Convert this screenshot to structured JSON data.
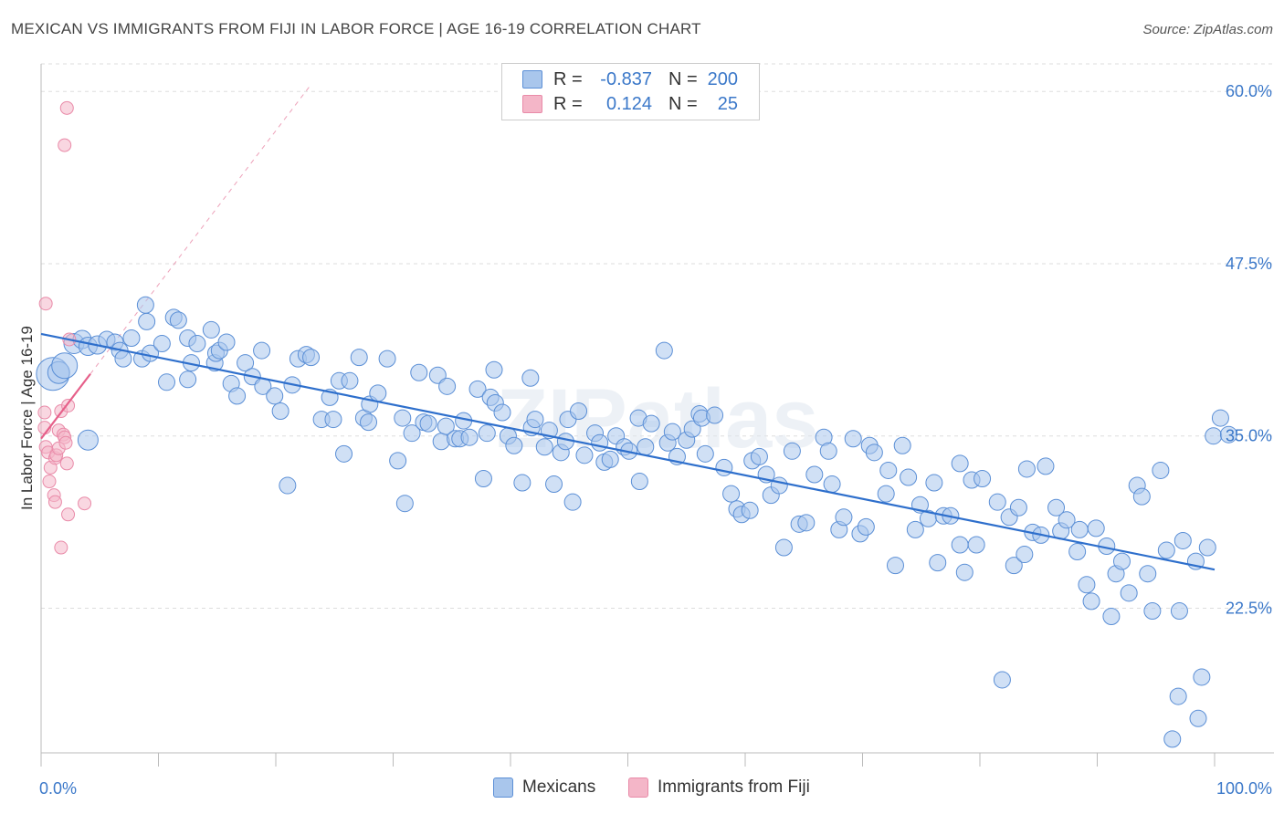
{
  "header": {
    "title": "MEXICAN VS IMMIGRANTS FROM FIJI IN LABOR FORCE | AGE 16-19 CORRELATION CHART",
    "source": "Source: ZipAtlas.com"
  },
  "watermark": "ZIPatlas",
  "legend": {
    "rows": [
      {
        "r_label": "R =",
        "r_value": "-0.837",
        "n_label": "N =",
        "n_value": "200",
        "color": "#a9c6ec"
      },
      {
        "r_label": "R =",
        "r_value": "0.124",
        "n_label": "N =",
        "n_value": "25",
        "color": "#f4b6c8"
      }
    ]
  },
  "bottom_legend": [
    {
      "label": "Mexicans",
      "color": "#a9c6ec"
    },
    {
      "label": "Immigrants from Fiji",
      "color": "#f4b6c8"
    }
  ],
  "colors": {
    "blue_fill": "#a9c6ec",
    "blue_stroke": "#5b8fd6",
    "blue_line": "#2e6fcc",
    "pink_fill": "#f4b6c8",
    "pink_stroke": "#e98aa8",
    "pink_line": "#e6608a",
    "axis_text": "#3b78c9",
    "grid": "#dddddd"
  },
  "chart_data": {
    "type": "scatter",
    "ylabel": "In Labor Force | Age 16-19",
    "xlim": [
      0,
      100
    ],
    "ylim": [
      12,
      62
    ],
    "x_tick_labels": [
      {
        "value": 0,
        "label": "0.0%"
      },
      {
        "value": 100,
        "label": "100.0%"
      }
    ],
    "y_tick_labels": [
      {
        "value": 22.5,
        "label": "22.5%"
      },
      {
        "value": 35.0,
        "label": "35.0%"
      },
      {
        "value": 47.5,
        "label": "47.5%"
      },
      {
        "value": 60.0,
        "label": "60.0%"
      }
    ],
    "grid": true,
    "series": [
      {
        "name": "Mexicans",
        "trend": {
          "x0": 0,
          "y0": 42.4,
          "x1": 100,
          "y1": 25.3
        },
        "points": [
          [
            1.0,
            39.5,
            18
          ],
          [
            1.5,
            39.6,
            12
          ],
          [
            2.0,
            40.1,
            14
          ],
          [
            2.8,
            41.7,
            11
          ],
          [
            3.5,
            42.0,
            10
          ],
          [
            4.0,
            41.5,
            10
          ],
          [
            4.0,
            34.7,
            11
          ],
          [
            4.8,
            41.6,
            10
          ],
          [
            5.6,
            42.0,
            9
          ],
          [
            6.3,
            41.8,
            9
          ],
          [
            6.7,
            41.2,
            9
          ],
          [
            7.0,
            40.6,
            9
          ],
          [
            7.7,
            42.1,
            9
          ],
          [
            8.6,
            40.6,
            9
          ],
          [
            8.9,
            44.5,
            9
          ],
          [
            9.0,
            43.3,
            9
          ],
          [
            9.3,
            41.0,
            9
          ],
          [
            10.3,
            41.7,
            9
          ],
          [
            10.7,
            38.9,
            9
          ],
          [
            11.3,
            43.6,
            9
          ],
          [
            11.7,
            43.4,
            9
          ],
          [
            12.5,
            42.1,
            9
          ],
          [
            12.5,
            39.1,
            9
          ],
          [
            12.8,
            40.3,
            9
          ],
          [
            13.3,
            41.7,
            9
          ],
          [
            14.5,
            42.7,
            9
          ],
          [
            14.8,
            40.3,
            9
          ],
          [
            14.9,
            41.0,
            9
          ],
          [
            15.2,
            41.2,
            9
          ],
          [
            15.8,
            41.8,
            9
          ],
          [
            16.2,
            38.8,
            9
          ],
          [
            16.7,
            37.9,
            9
          ],
          [
            17.4,
            40.3,
            9
          ],
          [
            18.0,
            39.3,
            9
          ],
          [
            18.8,
            41.2,
            9
          ],
          [
            18.9,
            38.6,
            9
          ],
          [
            19.9,
            37.9,
            9
          ],
          [
            20.4,
            36.8,
            9
          ],
          [
            21.0,
            31.4,
            9
          ],
          [
            21.4,
            38.7,
            9
          ],
          [
            21.9,
            40.6,
            9
          ],
          [
            22.6,
            40.9,
            9
          ],
          [
            23.0,
            40.7,
            9
          ],
          [
            23.9,
            36.2,
            9
          ],
          [
            24.6,
            37.8,
            9
          ],
          [
            24.9,
            36.2,
            9
          ],
          [
            25.4,
            39.0,
            9
          ],
          [
            25.8,
            33.7,
            9
          ],
          [
            26.3,
            39.0,
            9
          ],
          [
            27.1,
            40.7,
            9
          ],
          [
            27.5,
            36.3,
            9
          ],
          [
            27.9,
            36.0,
            9
          ],
          [
            28.0,
            37.3,
            9
          ],
          [
            28.7,
            38.1,
            9
          ],
          [
            29.5,
            40.6,
            9
          ],
          [
            30.4,
            33.2,
            9
          ],
          [
            30.8,
            36.3,
            9
          ],
          [
            31.0,
            30.1,
            9
          ],
          [
            31.6,
            35.2,
            9
          ],
          [
            32.2,
            39.6,
            9
          ],
          [
            32.6,
            36.0,
            9
          ],
          [
            33.0,
            35.9,
            9
          ],
          [
            33.8,
            39.4,
            9
          ],
          [
            34.1,
            34.6,
            9
          ],
          [
            34.5,
            35.7,
            9
          ],
          [
            34.6,
            38.6,
            9
          ],
          [
            35.3,
            34.8,
            9
          ],
          [
            35.7,
            34.8,
            9
          ],
          [
            36.0,
            36.1,
            9
          ],
          [
            36.5,
            34.9,
            9
          ],
          [
            37.2,
            38.4,
            9
          ],
          [
            37.7,
            31.9,
            9
          ],
          [
            38.0,
            35.2,
            9
          ],
          [
            38.3,
            37.8,
            9
          ],
          [
            38.6,
            39.8,
            9
          ],
          [
            38.7,
            37.4,
            9
          ],
          [
            39.3,
            36.7,
            9
          ],
          [
            39.8,
            35.0,
            9
          ],
          [
            40.3,
            34.3,
            9
          ],
          [
            41.0,
            31.6,
            9
          ],
          [
            41.7,
            39.2,
            9
          ],
          [
            41.8,
            35.6,
            9
          ],
          [
            42.1,
            36.2,
            9
          ],
          [
            42.9,
            34.2,
            9
          ],
          [
            43.3,
            35.4,
            9
          ],
          [
            43.7,
            31.5,
            9
          ],
          [
            44.3,
            33.8,
            9
          ],
          [
            44.7,
            34.6,
            9
          ],
          [
            44.9,
            36.2,
            9
          ],
          [
            45.3,
            30.2,
            9
          ],
          [
            45.8,
            36.8,
            9
          ],
          [
            46.3,
            33.6,
            9
          ],
          [
            47.2,
            35.2,
            9
          ],
          [
            47.6,
            34.5,
            9
          ],
          [
            48.0,
            33.1,
            9
          ],
          [
            48.5,
            33.3,
            9
          ],
          [
            49.0,
            35.0,
            9
          ],
          [
            49.7,
            34.2,
            9
          ],
          [
            50.1,
            33.9,
            9
          ],
          [
            50.9,
            36.3,
            9
          ],
          [
            51.0,
            31.7,
            9
          ],
          [
            51.5,
            34.2,
            9
          ],
          [
            52.0,
            35.9,
            9
          ],
          [
            53.1,
            41.2,
            9
          ],
          [
            53.4,
            34.5,
            9
          ],
          [
            53.8,
            35.3,
            9
          ],
          [
            54.2,
            33.5,
            9
          ],
          [
            55.0,
            34.7,
            9
          ],
          [
            55.5,
            35.5,
            9
          ],
          [
            56.1,
            36.6,
            9
          ],
          [
            56.3,
            36.3,
            9
          ],
          [
            56.6,
            33.7,
            9
          ],
          [
            57.4,
            36.5,
            9
          ],
          [
            58.2,
            32.7,
            9
          ],
          [
            58.8,
            30.8,
            9
          ],
          [
            59.3,
            29.7,
            9
          ],
          [
            59.7,
            29.3,
            9
          ],
          [
            60.4,
            29.6,
            9
          ],
          [
            60.6,
            33.2,
            9
          ],
          [
            61.2,
            33.5,
            9
          ],
          [
            61.8,
            32.2,
            9
          ],
          [
            62.2,
            30.7,
            9
          ],
          [
            62.9,
            31.4,
            9
          ],
          [
            63.3,
            26.9,
            9
          ],
          [
            64.0,
            33.9,
            9
          ],
          [
            64.6,
            28.6,
            9
          ],
          [
            65.2,
            28.7,
            9
          ],
          [
            65.9,
            32.2,
            9
          ],
          [
            66.7,
            34.9,
            9
          ],
          [
            67.1,
            33.9,
            9
          ],
          [
            67.4,
            31.5,
            9
          ],
          [
            68.0,
            28.2,
            9
          ],
          [
            68.4,
            29.1,
            9
          ],
          [
            69.2,
            34.8,
            9
          ],
          [
            69.8,
            27.9,
            9
          ],
          [
            70.3,
            28.4,
            9
          ],
          [
            70.6,
            34.3,
            9
          ],
          [
            71.0,
            33.8,
            9
          ],
          [
            72.0,
            30.8,
            9
          ],
          [
            72.2,
            32.5,
            9
          ],
          [
            72.8,
            25.6,
            9
          ],
          [
            73.4,
            34.3,
            9
          ],
          [
            73.9,
            32.0,
            9
          ],
          [
            74.5,
            28.2,
            9
          ],
          [
            74.9,
            30.0,
            9
          ],
          [
            75.6,
            29.0,
            9
          ],
          [
            76.1,
            31.6,
            9
          ],
          [
            76.4,
            25.8,
            9
          ],
          [
            76.9,
            29.2,
            9
          ],
          [
            77.5,
            29.2,
            9
          ],
          [
            78.3,
            27.1,
            9
          ],
          [
            78.3,
            33.0,
            9
          ],
          [
            78.7,
            25.1,
            9
          ],
          [
            79.3,
            31.8,
            9
          ],
          [
            79.7,
            27.1,
            9
          ],
          [
            80.2,
            31.9,
            9
          ],
          [
            81.5,
            30.2,
            9
          ],
          [
            81.9,
            17.3,
            9
          ],
          [
            82.5,
            29.1,
            9
          ],
          [
            82.9,
            25.6,
            9
          ],
          [
            83.3,
            29.8,
            9
          ],
          [
            83.8,
            26.4,
            9
          ],
          [
            84.0,
            32.6,
            9
          ],
          [
            84.5,
            28.0,
            9
          ],
          [
            85.2,
            27.8,
            9
          ],
          [
            85.6,
            32.8,
            9
          ],
          [
            86.5,
            29.8,
            9
          ],
          [
            86.9,
            28.1,
            9
          ],
          [
            87.4,
            28.9,
            9
          ],
          [
            88.3,
            26.6,
            9
          ],
          [
            88.5,
            28.2,
            9
          ],
          [
            89.1,
            24.2,
            9
          ],
          [
            89.5,
            23.0,
            9
          ],
          [
            89.9,
            28.3,
            9
          ],
          [
            90.8,
            27.0,
            9
          ],
          [
            91.2,
            21.9,
            9
          ],
          [
            91.6,
            25.0,
            9
          ],
          [
            92.1,
            25.9,
            9
          ],
          [
            92.7,
            23.6,
            9
          ],
          [
            93.4,
            31.4,
            9
          ],
          [
            93.8,
            30.6,
            9
          ],
          [
            94.3,
            25.0,
            9
          ],
          [
            94.7,
            22.3,
            9
          ],
          [
            95.4,
            32.5,
            9
          ],
          [
            95.9,
            26.7,
            9
          ],
          [
            96.4,
            13.0,
            9
          ],
          [
            96.9,
            16.1,
            9
          ],
          [
            97.0,
            22.3,
            9
          ],
          [
            97.3,
            27.4,
            9
          ],
          [
            98.4,
            25.9,
            9
          ],
          [
            98.6,
            14.5,
            9
          ],
          [
            98.9,
            17.5,
            9
          ],
          [
            99.4,
            26.9,
            9
          ],
          [
            99.9,
            35.0,
            9
          ],
          [
            100.5,
            36.3,
            9
          ],
          [
            101.2,
            35.1,
            9
          ]
        ]
      },
      {
        "name": "Immigrants from Fiji",
        "trend": {
          "x0": 0,
          "y0": 34.8,
          "x1": 4.2,
          "y1": 39.5,
          "ext_x1": 23,
          "ext_y1": 60.5
        },
        "points": [
          [
            0.4,
            44.6,
            7
          ],
          [
            0.3,
            36.7,
            7
          ],
          [
            0.3,
            35.6,
            7
          ],
          [
            0.4,
            34.2,
            7
          ],
          [
            0.6,
            33.8,
            7
          ],
          [
            0.8,
            32.7,
            7
          ],
          [
            0.7,
            31.7,
            7
          ],
          [
            1.1,
            30.7,
            7
          ],
          [
            1.2,
            30.2,
            7
          ],
          [
            1.2,
            33.4,
            7
          ],
          [
            1.3,
            33.6,
            7
          ],
          [
            1.5,
            35.4,
            7
          ],
          [
            1.7,
            36.8,
            7
          ],
          [
            1.5,
            34.1,
            7
          ],
          [
            1.9,
            35.1,
            7
          ],
          [
            2.0,
            34.9,
            7
          ],
          [
            2.1,
            34.5,
            7
          ],
          [
            2.2,
            33.0,
            7
          ],
          [
            1.7,
            26.9,
            7
          ],
          [
            2.2,
            58.8,
            7
          ],
          [
            2.0,
            56.1,
            7
          ],
          [
            2.3,
            37.2,
            7
          ],
          [
            2.3,
            29.3,
            7
          ],
          [
            2.4,
            42.0,
            7
          ],
          [
            3.7,
            30.1,
            7
          ]
        ]
      }
    ]
  }
}
